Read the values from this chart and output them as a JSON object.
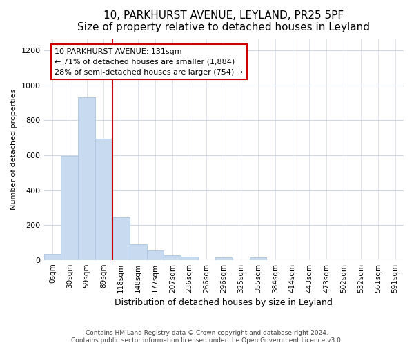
{
  "title1": "10, PARKHURST AVENUE, LEYLAND, PR25 5PF",
  "title2": "Size of property relative to detached houses in Leyland",
  "xlabel": "Distribution of detached houses by size in Leyland",
  "ylabel": "Number of detached properties",
  "bar_color": "#c8daf0",
  "bar_edge_color": "#aac4e0",
  "categories": [
    "0sqm",
    "30sqm",
    "59sqm",
    "89sqm",
    "118sqm",
    "148sqm",
    "177sqm",
    "207sqm",
    "236sqm",
    "266sqm",
    "296sqm",
    "325sqm",
    "355sqm",
    "384sqm",
    "414sqm",
    "443sqm",
    "473sqm",
    "502sqm",
    "532sqm",
    "561sqm",
    "591sqm"
  ],
  "values": [
    35,
    595,
    930,
    695,
    245,
    88,
    53,
    27,
    17,
    0,
    13,
    0,
    13,
    0,
    0,
    0,
    0,
    0,
    0,
    0,
    0
  ],
  "ylim": [
    0,
    1270
  ],
  "yticks": [
    0,
    200,
    400,
    600,
    800,
    1000,
    1200
  ],
  "vline_x": 3.5,
  "annotation_text": "10 PARKHURST AVENUE: 131sqm\n← 71% of detached houses are smaller (1,884)\n28% of semi-detached houses are larger (754) →",
  "annotation_box_color": "#ffffff",
  "annotation_box_edge": "#cc0000",
  "vline_color": "#cc0000",
  "footer": "Contains HM Land Registry data © Crown copyright and database right 2024.\nContains public sector information licensed under the Open Government Licence v3.0.",
  "background_color": "#ffffff",
  "plot_background": "#ffffff",
  "grid_color": "#d0d8e8",
  "title1_fontsize": 11,
  "title2_fontsize": 10,
  "xlabel_fontsize": 9,
  "ylabel_fontsize": 8
}
